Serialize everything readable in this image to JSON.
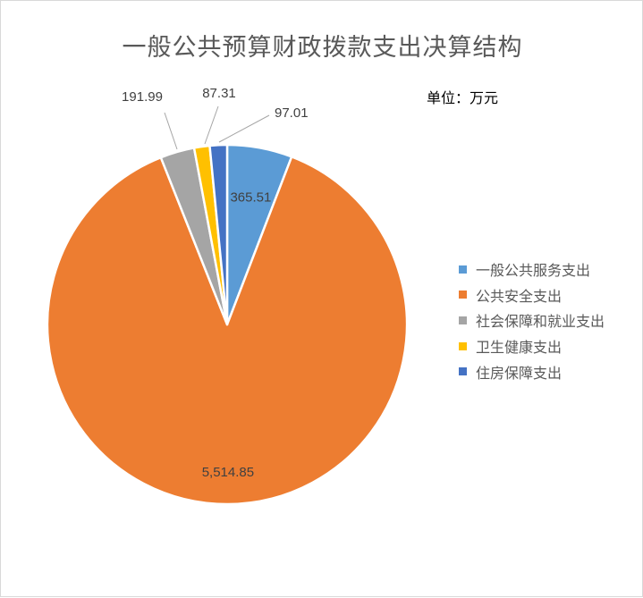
{
  "chart_data": {
    "type": "pie",
    "title": "一般公共预算财政拨款支出决算结构",
    "unit_note": "单位：万元",
    "legend_position": "right",
    "slices": [
      {
        "name": "一般公共服务支出",
        "value": 365.51,
        "label": "365.51",
        "color": "#5b9bd5"
      },
      {
        "name": "公共安全支出",
        "value": 5514.85,
        "label": "5,514.85",
        "color": "#ed7d31"
      },
      {
        "name": "社会保障和就业支出",
        "value": 191.99,
        "label": "191.99",
        "color": "#a5a5a5"
      },
      {
        "name": "卫生健康支出",
        "value": 87.31,
        "label": "87.31",
        "color": "#ffc000"
      },
      {
        "name": "住房保障支出",
        "value": 97.01,
        "label": "97.01",
        "color": "#4472c4"
      }
    ]
  }
}
